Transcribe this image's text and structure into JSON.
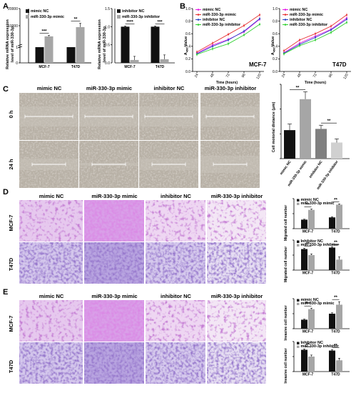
{
  "panel_labels": {
    "a": "A",
    "b": "B",
    "c": "C",
    "d": "D",
    "e": "E"
  },
  "colors": {
    "black": "#111111",
    "gray": "#a6a6a6",
    "magenta": "#e619e6",
    "red": "#e63232",
    "blue": "#2a46c8",
    "green": "#32d232"
  },
  "panel_a": {
    "charts": [
      {
        "key": "a1",
        "type": "bar",
        "ylabel_line1": "Relative mRNA expression",
        "ylabel_line2": "level of miR-330-3p",
        "ylim": [
          0,
          20000
        ],
        "yticks": [
          "0",
          "1",
          "10000",
          "20000"
        ],
        "categories": [
          "MCF-7",
          "T47D"
        ],
        "series": [
          {
            "name": "mimic NC",
            "color": "#111111",
            "values": [
              1.0,
              1.0
            ],
            "err": [
              0,
              0
            ]
          },
          {
            "name": "miR-330-3p mimic",
            "color": "#a6a6a6",
            "values": [
              3800,
              9200
            ],
            "err": [
              500,
              2200
            ]
          }
        ],
        "display": "broken",
        "significance": [
          "***",
          "**"
        ]
      },
      {
        "key": "a2",
        "type": "bar",
        "ylabel_line1": "Relative mRNA expression",
        "ylabel_line2": "level of miR-330-3p",
        "ylim": [
          0,
          1.5
        ],
        "yticks": [
          "0.0",
          "0.5",
          "1.0",
          "1.5"
        ],
        "categories": [
          "MCF-7",
          "T47D"
        ],
        "series": [
          {
            "name": "inhibitor NC",
            "color": "#111111",
            "values": [
              1.0,
              1.0
            ],
            "err": [
              0.02,
              0.02
            ]
          },
          {
            "name": "miR-330-3p inhibitor",
            "color": "#a6a6a6",
            "values": [
              0.08,
              0.1
            ],
            "err": [
              0.1,
              0.12
            ]
          }
        ],
        "significance": [
          "****",
          "***"
        ]
      }
    ]
  },
  "panel_b": {
    "charts": [
      {
        "key": "b1",
        "type": "line",
        "title": "MCF-7",
        "xlabel": "Time (hours)",
        "ylabel": "A",
        "ylabel_sub": "450",
        "ylabel_rest": " Value",
        "x": [
          24,
          48,
          72,
          96,
          120
        ],
        "ylim": [
          0.0,
          1.0
        ],
        "yticks": [
          "0.0",
          "0.2",
          "0.4",
          "0.6",
          "0.8",
          "1.0"
        ],
        "series": [
          {
            "name": "mimic NC",
            "color": "#e619e6",
            "values": [
              0.29,
              0.42,
              0.51,
              0.63,
              0.83
            ]
          },
          {
            "name": "miR-330-3p mimic",
            "color": "#e63232",
            "values": [
              0.31,
              0.45,
              0.59,
              0.73,
              0.9
            ]
          },
          {
            "name": "inhibitor NC",
            "color": "#2a46c8",
            "values": [
              0.28,
              0.4,
              0.5,
              0.64,
              0.84
            ]
          },
          {
            "name": "miR-330-3p inhibitor",
            "color": "#32d232",
            "values": [
              0.27,
              0.36,
              0.44,
              0.58,
              0.75
            ]
          }
        ]
      },
      {
        "key": "b2",
        "type": "line",
        "title": "T47D",
        "xlabel": "Time (hours)",
        "ylabel": "A",
        "ylabel_sub": "450",
        "ylabel_rest": " Value",
        "x": [
          24,
          48,
          72,
          96,
          120
        ],
        "ylim": [
          0.0,
          1.0
        ],
        "yticks": [
          "0.0",
          "0.2",
          "0.4",
          "0.6",
          "0.8",
          "1.0"
        ],
        "series": [
          {
            "name": "mimic NC",
            "color": "#e619e6",
            "values": [
              0.3,
              0.45,
              0.56,
              0.67,
              0.85
            ]
          },
          {
            "name": "miR-330-3p mimic",
            "color": "#e63232",
            "values": [
              0.33,
              0.5,
              0.6,
              0.72,
              0.9
            ]
          },
          {
            "name": "inhibitor NC",
            "color": "#2a46c8",
            "values": [
              0.29,
              0.43,
              0.54,
              0.66,
              0.83
            ]
          },
          {
            "name": "miR-330-3p inhibitor",
            "color": "#32d232",
            "values": [
              0.28,
              0.41,
              0.5,
              0.62,
              0.78
            ]
          }
        ]
      }
    ]
  },
  "panel_c": {
    "col_headers": [
      "mimic NC",
      "miR-330-3p mimic",
      "inhibitor NC",
      "miR-330-3p inhibitor"
    ],
    "row_headers": [
      "0 h",
      "24 h"
    ],
    "chart": {
      "key": "c1",
      "type": "bar",
      "ylabel": "Cell motorial distance  (μm)",
      "ylim": [
        0,
        60
      ],
      "categories": [
        "mimic NC",
        "miR-330-3p mimic",
        "inhibitor NC",
        "miR-330-3p inhibitor"
      ],
      "values": [
        23,
        48,
        24,
        13
      ],
      "err": [
        5,
        6,
        3,
        3
      ],
      "colors": [
        "#111111",
        "#a6a6a6",
        "#808080",
        "#d0d0d0"
      ],
      "significance": [
        "**",
        "**"
      ]
    }
  },
  "panel_d": {
    "col_headers": [
      "mimic NC",
      "miR-330-3p mimic",
      "inhibitor NC",
      "miR-330-3p inhibitor"
    ],
    "row_headers": [
      "MCF-7",
      "T47D"
    ],
    "charts": [
      {
        "key": "d1",
        "type": "bar",
        "ylabel": "Migrated cell number",
        "ylim": [
          0,
          400
        ],
        "categories": [
          "MCF-7",
          "T47D"
        ],
        "series": [
          {
            "name": "mimic NC",
            "color": "#111111",
            "values": [
              120,
              150
            ],
            "err": [
              6,
              8
            ]
          },
          {
            "name": "miR-330-3p mimic",
            "color": "#a6a6a6",
            "values": [
              250,
              320
            ],
            "err": [
              12,
              10
            ]
          }
        ],
        "significance": [
          "**",
          "**"
        ]
      },
      {
        "key": "d2",
        "type": "bar",
        "ylabel": "Migrated cell number",
        "ylim": [
          0,
          200
        ],
        "categories": [
          "MCF-7",
          "T47D"
        ],
        "series": [
          {
            "name": "Inhibitor NC",
            "color": "#111111",
            "values": [
              140,
              150
            ],
            "err": [
              6,
              6
            ]
          },
          {
            "name": "miR-330-3p inhibitor",
            "color": "#a6a6a6",
            "values": [
              100,
              70
            ],
            "err": [
              8,
              18
            ]
          }
        ],
        "significance": [
          "**",
          "**"
        ]
      }
    ]
  },
  "panel_e": {
    "col_headers": [
      "mimic NC",
      "miR-330-3p mimic",
      "inhibitor NC",
      "miR-330-3p inhibitor"
    ],
    "row_headers": [
      "MCF-7",
      "T47D"
    ],
    "charts": [
      {
        "key": "e1",
        "type": "bar",
        "ylabel": "Invasive cell number",
        "ylim": [
          0,
          400
        ],
        "categories": [
          "MCF-7",
          "T47D"
        ],
        "series": [
          {
            "name": "mimic NC",
            "color": "#111111",
            "values": [
              120,
              200
            ],
            "err": [
              8,
              12
            ]
          },
          {
            "name": "miR-330-3p mimic",
            "color": "#a6a6a6",
            "values": [
              260,
              320
            ],
            "err": [
              14,
              40
            ]
          }
        ],
        "significance": [
          "***",
          "**"
        ]
      },
      {
        "key": "e2",
        "type": "bar",
        "ylabel": "Invasive cell number",
        "ylim": [
          0,
          200
        ],
        "categories": [
          "MCF-7",
          "T47D"
        ],
        "series": [
          {
            "name": "Inhibitor NC",
            "color": "#111111",
            "values": [
              145,
              140
            ],
            "err": [
              6,
              6
            ]
          },
          {
            "name": "miR-330-3p inhibitor",
            "color": "#a6a6a6",
            "values": [
              100,
              75
            ],
            "err": [
              10,
              14
            ]
          }
        ],
        "significance": [
          "**",
          "**"
        ]
      }
    ]
  }
}
